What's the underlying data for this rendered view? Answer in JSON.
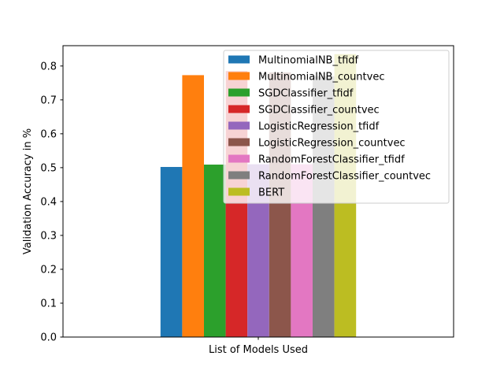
{
  "chart_data": {
    "type": "bar",
    "title": "",
    "xlabel": "List of Models Used",
    "ylabel": "Validation Accuracy in %",
    "ylim": [
      0,
      0.86
    ],
    "yticks": [
      0.0,
      0.1,
      0.2,
      0.3,
      0.4,
      0.5,
      0.6,
      0.7,
      0.8
    ],
    "ytick_labels": [
      "0.0",
      "0.1",
      "0.2",
      "0.3",
      "0.4",
      "0.5",
      "0.6",
      "0.7",
      "0.8"
    ],
    "grid": false,
    "legend_position": "top-right",
    "categories": [
      "List of Models Used"
    ],
    "series": [
      {
        "name": "MultinomialNB_tfidf",
        "values": [
          0.502
        ],
        "color": "#1f77b4"
      },
      {
        "name": "MultinomialNB_countvec",
        "values": [
          0.773
        ],
        "color": "#ff7f0e"
      },
      {
        "name": "SGDClassifier_tfidf",
        "values": [
          0.509
        ],
        "color": "#2ca02c"
      },
      {
        "name": "SGDClassifier_countvec",
        "values": [
          0.785
        ],
        "color": "#d62728"
      },
      {
        "name": "LogisticRegression_tfidf",
        "values": [
          0.51
        ],
        "color": "#9467bd"
      },
      {
        "name": "LogisticRegression_countvec",
        "values": [
          0.781
        ],
        "color": "#8c564b"
      },
      {
        "name": "RandomForestClassifier_tfidf",
        "values": [
          0.51
        ],
        "color": "#e377c2"
      },
      {
        "name": "RandomForestClassifier_countvec",
        "values": [
          0.77
        ],
        "color": "#7f7f7f"
      },
      {
        "name": "BERT",
        "values": [
          0.835
        ],
        "color": "#bcbd22"
      }
    ]
  }
}
